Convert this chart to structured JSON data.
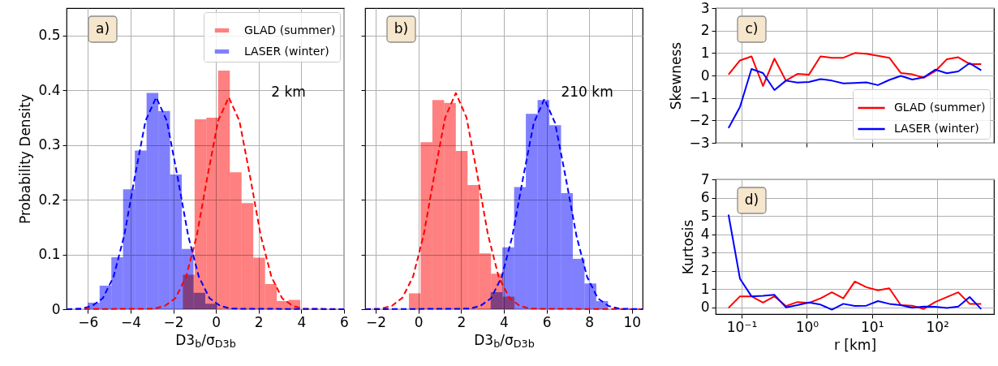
{
  "chart_data": [
    {
      "type": "histogram",
      "xlabel": "D3$_{b}$/σ$_{D3b}$",
      "ylabel": "Probability Density",
      "xlim": [
        -7,
        6
      ],
      "xticks": [
        -6,
        -4,
        -2,
        0,
        2,
        4,
        6
      ],
      "ylim": [
        0,
        0.55
      ],
      "yticks": [
        0,
        0.1,
        0.2,
        0.3,
        0.4,
        0.5
      ],
      "grid": true,
      "legend": "top right",
      "annotations": [
        "a)",
        "2 km"
      ],
      "series": [
        {
          "name": "GLAD (summer)",
          "color": "#ff8080",
          "bins": [
            -1.55,
            -1.0,
            -0.45,
            0.1,
            0.65,
            1.2,
            1.75,
            2.3,
            2.85,
            3.4,
            3.95
          ],
          "values": [
            0.063,
            0.347,
            0.35,
            0.436,
            0.25,
            0.194,
            0.094,
            0.046,
            0.015,
            0.017
          ]
        },
        {
          "name": "LASER (winter)",
          "color": "#8080ff",
          "bins": [
            -6,
            -5.45,
            -4.9,
            -4.35,
            -3.8,
            -3.25,
            -2.7,
            -2.15,
            -1.6,
            -1.05,
            -0.5,
            0.05
          ],
          "values": [
            0.012,
            0.043,
            0.095,
            0.219,
            0.29,
            0.395,
            0.362,
            0.246,
            0.11,
            0.03,
            0.01
          ]
        },
        {
          "type": "line",
          "color": "#ff0000",
          "line_style": "dashed",
          "x": [
            -7,
            -2.9,
            -2.4,
            -1.9,
            -1.4,
            -0.9,
            -0.4,
            0.1,
            0.6,
            1.1,
            1.6,
            2.1,
            2.6,
            3.1,
            3.6,
            4.1,
            6
          ],
          "values": [
            0,
            0.001,
            0.006,
            0.02,
            0.059,
            0.134,
            0.242,
            0.344,
            0.387,
            0.344,
            0.242,
            0.134,
            0.059,
            0.02,
            0.006,
            0.001,
            0
          ]
        },
        {
          "type": "line",
          "color": "#0000ff",
          "line_style": "dashed",
          "x": [
            -7,
            -6.3,
            -5.8,
            -5.3,
            -4.8,
            -4.3,
            -3.8,
            -3.3,
            -2.8,
            -2.3,
            -1.8,
            -1.3,
            -0.8,
            -0.3,
            0.2,
            0.7,
            6
          ],
          "values": [
            0,
            0.001,
            0.006,
            0.02,
            0.059,
            0.134,
            0.242,
            0.344,
            0.387,
            0.344,
            0.242,
            0.134,
            0.059,
            0.02,
            0.006,
            0.001,
            0
          ]
        }
      ]
    },
    {
      "type": "histogram",
      "xlabel": "D3$_{b}$/σ$_{D3b}$",
      "xlim": [
        -2.5,
        10.5
      ],
      "xticks": [
        -2,
        0,
        2,
        4,
        6,
        8,
        10
      ],
      "ylim": [
        0,
        0.55
      ],
      "yticks": [
        0,
        0.1,
        0.2,
        0.3,
        0.4,
        0.5
      ],
      "grid": true,
      "tick_labels": "x",
      "annotations": [
        "b)",
        "210 km"
      ],
      "series": [
        {
          "color": "#ff8080",
          "bins": [
            -0.45,
            0.1,
            0.65,
            1.2,
            1.75,
            2.3,
            2.85,
            3.4,
            3.95,
            4.5
          ],
          "values": [
            0.029,
            0.305,
            0.382,
            0.377,
            0.289,
            0.227,
            0.102,
            0.065,
            0.023
          ]
        },
        {
          "color": "#8080ff",
          "bins": [
            3.38,
            3.93,
            4.48,
            5.03,
            5.58,
            6.13,
            6.68,
            7.23,
            7.78,
            8.33,
            8.88
          ],
          "values": [
            0.031,
            0.113,
            0.223,
            0.357,
            0.382,
            0.336,
            0.212,
            0.092,
            0.047,
            0.015
          ]
        },
        {
          "type": "line",
          "color": "#ff0000",
          "line_style": "dashed",
          "x": [
            -2.5,
            -1.75,
            -1.25,
            -0.75,
            -0.25,
            0.25,
            0.75,
            1.25,
            1.75,
            2.25,
            2.75,
            3.25,
            3.75,
            4.25,
            4.75,
            5.25,
            10.5
          ],
          "values": [
            0,
            0.001,
            0.006,
            0.021,
            0.06,
            0.137,
            0.247,
            0.35,
            0.395,
            0.35,
            0.247,
            0.137,
            0.06,
            0.021,
            0.006,
            0.001,
            0
          ]
        },
        {
          "type": "line",
          "color": "#0000ff",
          "line_style": "dashed",
          "x": [
            -2.5,
            2.4,
            2.9,
            3.4,
            3.9,
            4.4,
            4.9,
            5.4,
            5.9,
            6.4,
            6.9,
            7.4,
            7.9,
            8.4,
            8.9,
            9.4,
            10.5
          ],
          "values": [
            0,
            0.001,
            0.006,
            0.02,
            0.059,
            0.134,
            0.24,
            0.34,
            0.384,
            0.34,
            0.24,
            0.134,
            0.059,
            0.02,
            0.006,
            0.001,
            0
          ]
        }
      ]
    },
    {
      "type": "line",
      "ylabel": "Skewness",
      "log": "x",
      "xlim": [
        0.04,
        740
      ],
      "ylim": [
        -3,
        3
      ],
      "yticks": [
        -3,
        -2,
        -1,
        0,
        1,
        2,
        3
      ],
      "grid": true,
      "legend": "bottom right",
      "tick_labels": "y",
      "annotations": [
        "c)"
      ],
      "xticks": [
        0.1,
        1,
        10,
        100
      ],
      "x": [
        0.063,
        0.0945,
        0.142,
        0.213,
        0.319,
        0.478,
        0.718,
        1.08,
        1.62,
        2.42,
        3.63,
        5.45,
        8.18,
        12.3,
        18.4,
        27.6,
        41.4,
        62.1,
        93.2,
        140,
        210,
        314,
        472
      ],
      "series": [
        {
          "name": "GLAD (summer)",
          "color": "#ff0000",
          "values": [
            0.04,
            0.67,
            0.85,
            -0.47,
            0.75,
            -0.23,
            0.07,
            0.04,
            0.85,
            0.79,
            0.79,
            1.0,
            0.97,
            0.88,
            0.79,
            0.11,
            0.05,
            -0.1,
            0.19,
            0.72,
            0.81,
            0.51,
            0.51
          ]
        },
        {
          "name": "LASER (winter)",
          "color": "#0000ff",
          "values": [
            -2.34,
            -1.4,
            0.29,
            0.11,
            -0.65,
            -0.23,
            -0.32,
            -0.29,
            -0.16,
            -0.23,
            -0.35,
            -0.33,
            -0.31,
            -0.43,
            -0.2,
            -0.02,
            -0.18,
            -0.08,
            0.26,
            0.1,
            0.18,
            0.55,
            0.23
          ]
        }
      ]
    },
    {
      "type": "line",
      "xlabel": "r [km]",
      "ylabel": "Kurtosis",
      "log": "x",
      "xlim": [
        0.04,
        740
      ],
      "xticks": [
        {
          "value": 0.1,
          "label": "10⁻¹"
        },
        {
          "value": 1,
          "label": "10⁰"
        },
        {
          "value": 10,
          "label": "10¹"
        },
        {
          "value": 100,
          "label": "10²"
        }
      ],
      "ylim": [
        -0.37,
        7
      ],
      "yticks": [
        0,
        1,
        2,
        3,
        4,
        5,
        6,
        7
      ],
      "grid": true,
      "annotations": [
        "d)"
      ],
      "x": [
        0.063,
        0.0945,
        0.142,
        0.213,
        0.319,
        0.478,
        0.718,
        1.08,
        1.62,
        2.42,
        3.63,
        5.45,
        8.18,
        12.3,
        18.4,
        27.6,
        41.4,
        62.1,
        93.2,
        140,
        210,
        314,
        472
      ],
      "series": [
        {
          "color": "#ff0000",
          "values": [
            -0.03,
            0.6,
            0.6,
            0.26,
            0.6,
            0.07,
            0.29,
            0.24,
            0.49,
            0.82,
            0.49,
            1.41,
            1.1,
            0.93,
            1.04,
            0.12,
            0.09,
            -0.09,
            0.29,
            0.56,
            0.82,
            0.19,
            0.19
          ]
        },
        {
          "color": "#0000ff",
          "values": [
            5.07,
            1.56,
            0.6,
            0.63,
            0.68,
            0.0,
            0.12,
            0.26,
            0.15,
            -0.13,
            0.19,
            0.07,
            0.09,
            0.34,
            0.19,
            0.12,
            -0.03,
            0.04,
            0.03,
            -0.04,
            0.04,
            0.56,
            -0.1
          ]
        }
      ]
    }
  ]
}
